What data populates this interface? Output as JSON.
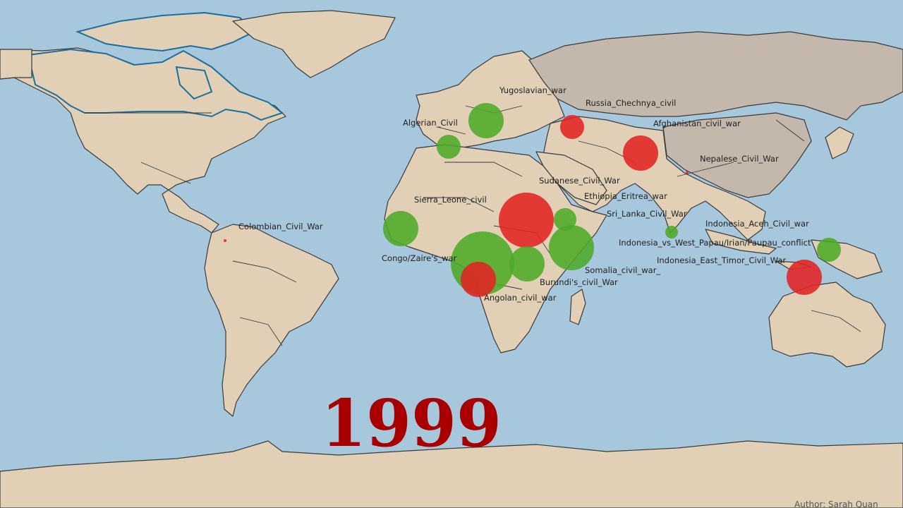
{
  "year": "1999",
  "author": "Author: Sarah Quan",
  "colors": {
    "ocean": "#a7c7dc",
    "land": "#e1d0b5",
    "highlight_land": "#c4b7ab",
    "red": "#e32323",
    "green": "#4caa28",
    "year": "#a80000"
  },
  "conflicts": [
    {
      "name": "Yugoslavian_war",
      "status": "green"
    },
    {
      "name": "Russia_Chechnya_civil",
      "status": "red"
    },
    {
      "name": "Algerian_Civil",
      "status": "green"
    },
    {
      "name": "Afghanistan_civil_war",
      "status": "red"
    },
    {
      "name": "Nepalese_Civil_War",
      "status": "red"
    },
    {
      "name": "Sudanese_Civil_War",
      "status": "red"
    },
    {
      "name": "Ethiopia_Eritrea_war",
      "status": "green"
    },
    {
      "name": "Sierra_Leone_civil",
      "status": "green"
    },
    {
      "name": "Sri_Lanka_Civil_War",
      "status": "green"
    },
    {
      "name": "Colombian_Civil_War",
      "status": "red"
    },
    {
      "name": "Indonesia_Aceh_Civil_war",
      "status": "green"
    },
    {
      "name": "Indonesia_vs_West_Papau/Irian/Paupau_conflict",
      "status": "green"
    },
    {
      "name": "Congo/Zaire's_war",
      "status": "green"
    },
    {
      "name": "Indonesia_East_Timor_Civil_War",
      "status": "red"
    },
    {
      "name": "Somalia_civil_war_",
      "status": "green"
    },
    {
      "name": "Burundi's_civil_War",
      "status": "green"
    },
    {
      "name": "Angolan_civil_war",
      "status": "red"
    }
  ]
}
